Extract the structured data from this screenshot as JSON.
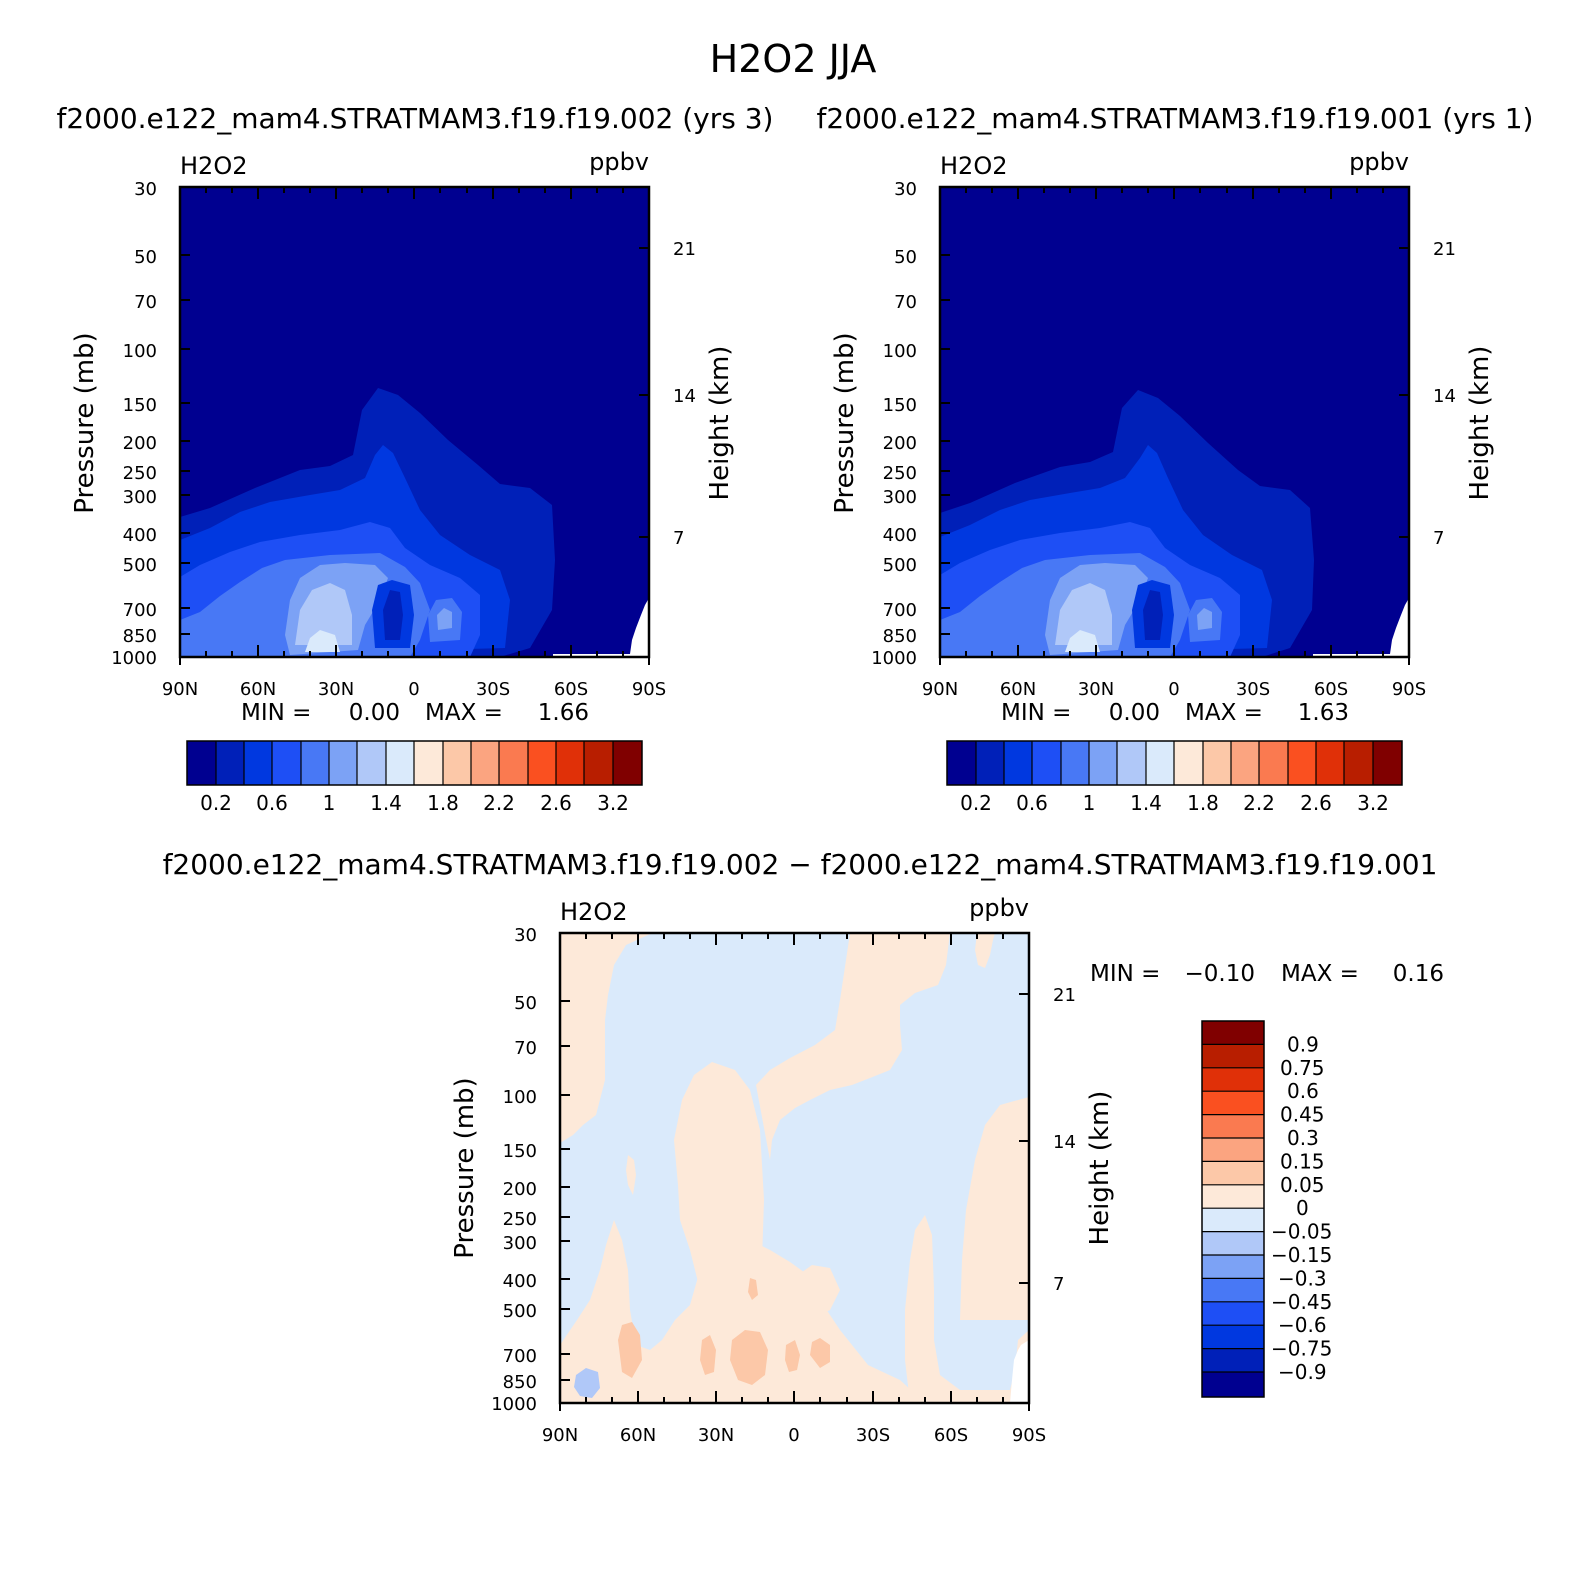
{
  "figure": {
    "title": "H2O2 JJA",
    "panel_titles": [
      "f2000.e122_mam4.STRATMAM3.f19.f19.002 (yrs 3)",
      "f2000.e122_mam4.STRATMAM3.f19.f19.001 (yrs 1)"
    ],
    "diff_title": "f2000.e122_mam4.STRATMAM3.f19.f19.002 − f2000.e122_mam4.STRATMAM3.f19.f19.001"
  },
  "chart_data": [
    {
      "type": "heatmap",
      "variable": "H2O2",
      "units": "ppbv",
      "ylabel": "Pressure (mb)",
      "ylabel_right": "Height (km)",
      "x_ticks": [
        "90N",
        "60N",
        "30N",
        "0",
        "30S",
        "60S",
        "90S"
      ],
      "y_ticks": [
        30,
        50,
        70,
        100,
        150,
        200,
        250,
        300,
        400,
        500,
        700,
        850,
        1000
      ],
      "height_ticks": [
        21,
        14,
        7
      ],
      "y_scale": "log",
      "ylim": [
        1000,
        30
      ],
      "xlim": [
        90,
        -90
      ],
      "min_label": "MIN =",
      "min_value": "0.00",
      "max_label": "MAX =",
      "max_value": "1.66",
      "levels": [
        0.2,
        0.4,
        0.6,
        0.8,
        1.0,
        1.2,
        1.4,
        1.6,
        1.8,
        2.0,
        2.2,
        2.4,
        2.6,
        2.8,
        3.0,
        3.2
      ],
      "colorbar_labels": [
        "0.2",
        "0.6",
        "1",
        "1.4",
        "1.8",
        "2.2",
        "2.6",
        "3.2"
      ],
      "colors": [
        "#000090",
        "#0020b8",
        "#0038e0",
        "#1e4ff5",
        "#4878f5",
        "#7ca2f5",
        "#b0c8f8",
        "#daeafb",
        "#fde9d9",
        "#fcc8a8",
        "#fba480",
        "#fa7a50",
        "#fa5020",
        "#e03008",
        "#b81e00",
        "#800000"
      ],
      "legend": "bottom"
    },
    {
      "type": "heatmap",
      "variable": "H2O2",
      "units": "ppbv",
      "ylabel": "Pressure (mb)",
      "ylabel_right": "Height (km)",
      "x_ticks": [
        "90N",
        "60N",
        "30N",
        "0",
        "30S",
        "60S",
        "90S"
      ],
      "y_ticks": [
        30,
        50,
        70,
        100,
        150,
        200,
        250,
        300,
        400,
        500,
        700,
        850,
        1000
      ],
      "height_ticks": [
        21,
        14,
        7
      ],
      "y_scale": "log",
      "ylim": [
        1000,
        30
      ],
      "xlim": [
        90,
        -90
      ],
      "min_label": "MIN =",
      "min_value": "0.00",
      "max_label": "MAX =",
      "max_value": "1.63",
      "levels": [
        0.2,
        0.4,
        0.6,
        0.8,
        1.0,
        1.2,
        1.4,
        1.6,
        1.8,
        2.0,
        2.2,
        2.4,
        2.6,
        2.8,
        3.0,
        3.2
      ],
      "colorbar_labels": [
        "0.2",
        "0.6",
        "1",
        "1.4",
        "1.8",
        "2.2",
        "2.6",
        "3.2"
      ],
      "colors": [
        "#000090",
        "#0020b8",
        "#0038e0",
        "#1e4ff5",
        "#4878f5",
        "#7ca2f5",
        "#b0c8f8",
        "#daeafb",
        "#fde9d9",
        "#fcc8a8",
        "#fba480",
        "#fa7a50",
        "#fa5020",
        "#e03008",
        "#b81e00",
        "#800000"
      ],
      "legend": "bottom"
    },
    {
      "type": "heatmap",
      "variable": "H2O2",
      "units": "ppbv",
      "ylabel": "Pressure (mb)",
      "ylabel_right": "Height (km)",
      "x_ticks": [
        "90N",
        "60N",
        "30N",
        "0",
        "30S",
        "60S",
        "90S"
      ],
      "y_ticks": [
        30,
        50,
        70,
        100,
        150,
        200,
        250,
        300,
        400,
        500,
        700,
        850,
        1000
      ],
      "height_ticks": [
        21,
        14,
        7
      ],
      "y_scale": "log",
      "ylim": [
        1000,
        30
      ],
      "xlim": [
        90,
        -90
      ],
      "min_label": "MIN =",
      "min_value": "−0.10",
      "max_label": "MAX =",
      "max_value": "0.16",
      "colorbar_labels": [
        "0.9",
        "0.75",
        "0.6",
        "0.45",
        "0.3",
        "0.15",
        "0.05",
        "0",
        "−0.05",
        "−0.15",
        "−0.3",
        "−0.45",
        "−0.6",
        "−0.75",
        "−0.9"
      ],
      "colors": [
        "#800000",
        "#b81e00",
        "#e03008",
        "#fa5020",
        "#fa7a50",
        "#fba480",
        "#fcc8a8",
        "#fde9d9",
        "#daeafb",
        "#b0c8f8",
        "#7ca2f5",
        "#4878f5",
        "#1e4ff5",
        "#0038e0",
        "#0020b8",
        "#000090"
      ],
      "legend": "right"
    }
  ]
}
